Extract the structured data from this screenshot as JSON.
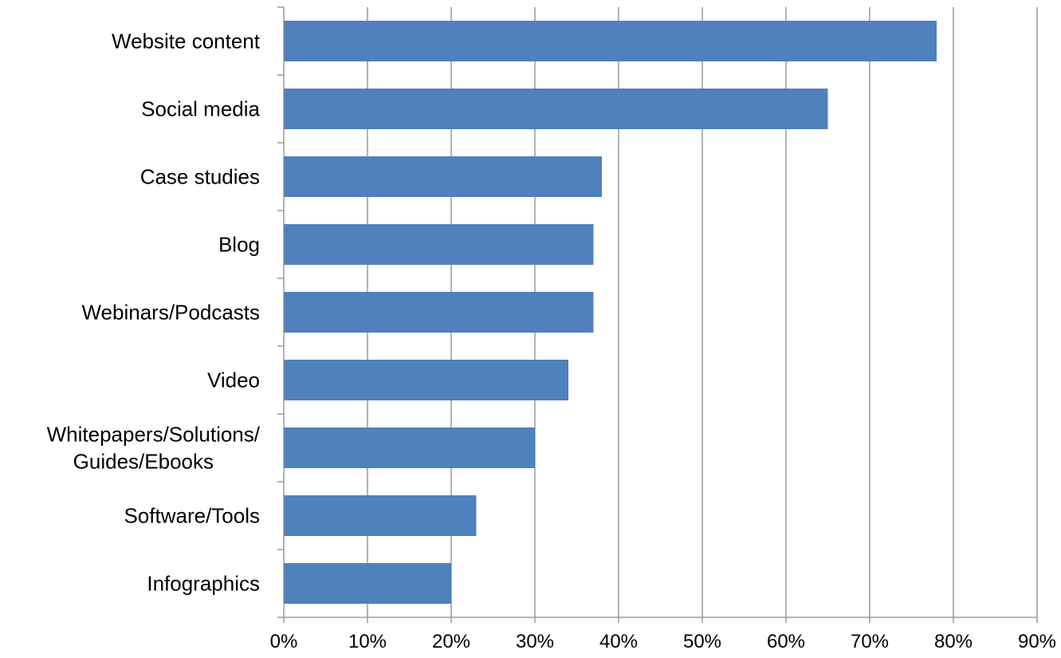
{
  "chart_data": {
    "type": "bar",
    "orientation": "horizontal",
    "categories": [
      "Website content",
      "Social media",
      "Case studies",
      "Blog",
      "Webinars/Podcasts",
      "Video",
      "Whitepapers/Solutions/\nGuides/Ebooks",
      "Software/Tools",
      "Infographics"
    ],
    "values": [
      78,
      65,
      38,
      37,
      37,
      34,
      30,
      23,
      20
    ],
    "xlim": [
      0,
      90
    ],
    "xticks": [
      0,
      10,
      20,
      30,
      40,
      50,
      60,
      70,
      80,
      90
    ],
    "xtick_labels": [
      "0%",
      "10%",
      "20%",
      "30%",
      "40%",
      "50%",
      "60%",
      "70%",
      "80%",
      "90%"
    ],
    "title": "",
    "xlabel": "",
    "ylabel": "",
    "grid": "vertical",
    "legend": "none",
    "bar_color": "#4f81bd"
  }
}
